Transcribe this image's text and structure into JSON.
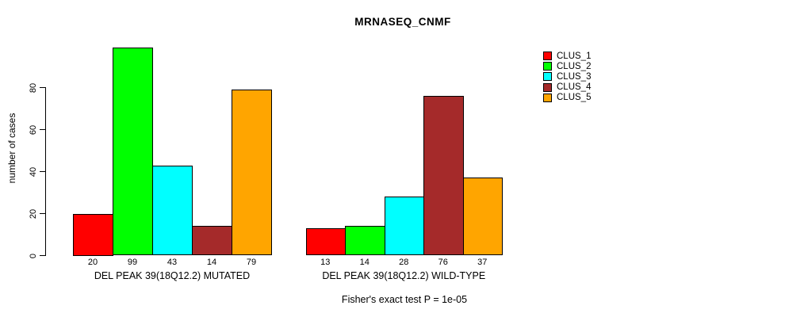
{
  "chart_data": {
    "type": "bar",
    "title": "MRNASEQ_CNMF",
    "ylabel": "number of cases",
    "xlabel": "",
    "yticks": [
      0,
      20,
      40,
      60,
      80
    ],
    "ylim": [
      0,
      99
    ],
    "grid": false,
    "legend_position": "top-right",
    "categories": [
      "DEL PEAK 39(18Q12.2) MUTATED",
      "DEL PEAK 39(18Q12.2) WILD-TYPE"
    ],
    "series": [
      {
        "name": "CLUS_1",
        "color": "#FF0000",
        "values": [
          20,
          13
        ]
      },
      {
        "name": "CLUS_2",
        "color": "#00FF00",
        "values": [
          99,
          14
        ]
      },
      {
        "name": "CLUS_3",
        "color": "#00FFFF",
        "values": [
          43,
          28
        ]
      },
      {
        "name": "CLUS_4",
        "color": "#A52A2A",
        "values": [
          14,
          76
        ]
      },
      {
        "name": "CLUS_5",
        "color": "#FFA500",
        "values": [
          79,
          37
        ]
      }
    ],
    "bar_value_labels": [
      [
        20,
        99,
        43,
        14,
        79
      ],
      [
        13,
        14,
        28,
        76,
        37
      ]
    ],
    "footnote": "Fisher's exact test P = 1e-05"
  }
}
